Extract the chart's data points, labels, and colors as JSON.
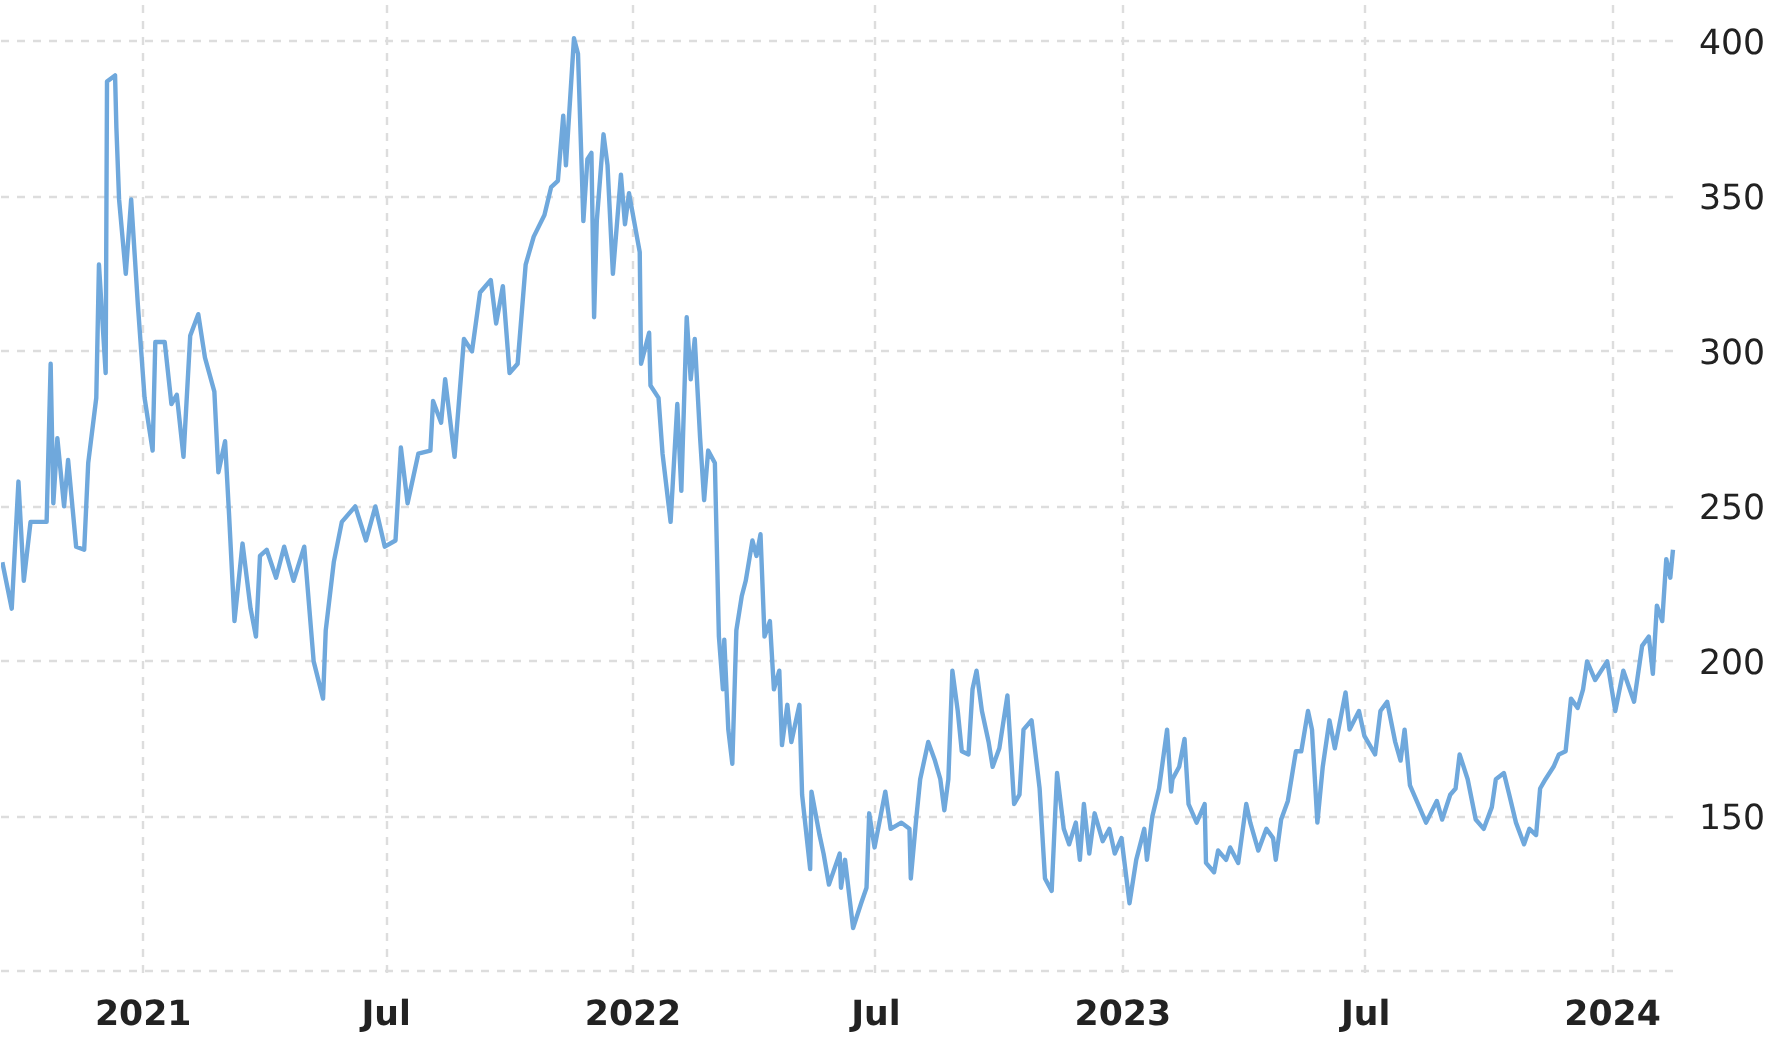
{
  "chart_data": {
    "type": "line",
    "color": "#6fa8dc",
    "grid": true,
    "line_style": "solid",
    "marker": "none",
    "xlim": [
      "2020-09-17",
      "2024-02-18"
    ],
    "xticks": [
      {
        "value": "2021-01-01",
        "label": "2021"
      },
      {
        "value": "2021-07-01",
        "label": "Jul"
      },
      {
        "value": "2022-01-01",
        "label": "2022"
      },
      {
        "value": "2022-07-01",
        "label": "Jul"
      },
      {
        "value": "2023-01-01",
        "label": "2023"
      },
      {
        "value": "2023-07-01",
        "label": "Jul"
      },
      {
        "value": "2024-01-01",
        "label": "2024"
      }
    ],
    "ylim": [
      99.5,
      413
    ],
    "yticks": [
      {
        "value": 100,
        "label": null
      },
      150,
      200,
      250,
      300,
      350,
      400
    ],
    "x": [
      "2020-09-18",
      "2020-09-25",
      "2020-09-30",
      "2020-10-04",
      "2020-10-09",
      "2020-10-15",
      "2020-10-21",
      "2020-10-24",
      "2020-10-26",
      "2020-10-29",
      "2020-11-03",
      "2020-11-06",
      "2020-11-12",
      "2020-11-18",
      "2020-11-21",
      "2020-11-27",
      "2020-11-29",
      "2020-12-04",
      "2020-12-05",
      "2020-12-11",
      "2020-12-12",
      "2020-12-14",
      "2020-12-19",
      "2020-12-23",
      "2020-12-28",
      "2021-01-02",
      "2021-01-08",
      "2021-01-10",
      "2021-01-17",
      "2021-01-22",
      "2021-01-26",
      "2021-01-31",
      "2021-02-05",
      "2021-02-11",
      "2021-02-16",
      "2021-02-23",
      "2021-02-26",
      "2021-03-03",
      "2021-03-06",
      "2021-03-10",
      "2021-03-16",
      "2021-03-22",
      "2021-03-26",
      "2021-03-29",
      "2021-04-03",
      "2021-04-10",
      "2021-04-16",
      "2021-04-23",
      "2021-05-01",
      "2021-05-08",
      "2021-05-15",
      "2021-05-17",
      "2021-05-23",
      "2021-05-29",
      "2021-06-08",
      "2021-06-16",
      "2021-06-23",
      "2021-06-30",
      "2021-07-08",
      "2021-07-12",
      "2021-07-17",
      "2021-07-25",
      "2021-08-03",
      "2021-08-05",
      "2021-08-11",
      "2021-08-14",
      "2021-08-21",
      "2021-08-28",
      "2021-09-03",
      "2021-09-09",
      "2021-09-17",
      "2021-09-21",
      "2021-09-26",
      "2021-10-01",
      "2021-10-07",
      "2021-10-13",
      "2021-10-19",
      "2021-10-27",
      "2021-11-01",
      "2021-11-06",
      "2021-11-10",
      "2021-11-12",
      "2021-11-18",
      "2021-11-21",
      "2021-11-25",
      "2021-11-28",
      "2021-12-01",
      "2021-12-03",
      "2021-12-05",
      "2021-12-10",
      "2021-12-13",
      "2021-12-17",
      "2021-12-23",
      "2021-12-26",
      "2021-12-29",
      "2022-01-06",
      "2022-01-07",
      "2022-01-13",
      "2022-01-14",
      "2022-01-20",
      "2022-01-23",
      "2022-01-29",
      "2022-02-03",
      "2022-02-06",
      "2022-02-10",
      "2022-02-13",
      "2022-02-16",
      "2022-02-20",
      "2022-02-23",
      "2022-02-26",
      "2022-03-03",
      "2022-03-06",
      "2022-03-09",
      "2022-03-10",
      "2022-03-13",
      "2022-03-16",
      "2022-03-19",
      "2022-03-23",
      "2022-03-26",
      "2022-03-31",
      "2022-04-03",
      "2022-04-06",
      "2022-04-09",
      "2022-04-13",
      "2022-04-16",
      "2022-04-20",
      "2022-04-22",
      "2022-04-26",
      "2022-04-29",
      "2022-05-05",
      "2022-05-07",
      "2022-05-13",
      "2022-05-14",
      "2022-05-20",
      "2022-05-23",
      "2022-05-27",
      "2022-06-04",
      "2022-06-05",
      "2022-06-08",
      "2022-06-14",
      "2022-06-20",
      "2022-06-24",
      "2022-06-26",
      "2022-06-30",
      "2022-07-08",
      "2022-07-12",
      "2022-07-20",
      "2022-07-26",
      "2022-07-27",
      "2022-07-31",
      "2022-08-03",
      "2022-08-09",
      "2022-08-14",
      "2022-08-18",
      "2022-08-21",
      "2022-08-24",
      "2022-08-27",
      "2022-08-31",
      "2022-09-03",
      "2022-09-08",
      "2022-09-11",
      "2022-09-14",
      "2022-09-18",
      "2022-09-23",
      "2022-09-26",
      "2022-10-01",
      "2022-10-07",
      "2022-10-12",
      "2022-10-16",
      "2022-10-19",
      "2022-10-25",
      "2022-10-31",
      "2022-11-04",
      "2022-11-09",
      "2022-11-13",
      "2022-11-18",
      "2022-11-22",
      "2022-11-27",
      "2022-11-30",
      "2022-12-03",
      "2022-12-07",
      "2022-12-11",
      "2022-12-17",
      "2022-12-22",
      "2022-12-26",
      "2022-12-31",
      "2023-01-06",
      "2023-01-11",
      "2023-01-17",
      "2023-01-19",
      "2023-01-23",
      "2023-01-28",
      "2023-02-03",
      "2023-02-06",
      "2023-02-07",
      "2023-02-12",
      "2023-02-16",
      "2023-02-19",
      "2023-02-25",
      "2023-03-03",
      "2023-03-04",
      "2023-03-10",
      "2023-03-13",
      "2023-03-19",
      "2023-03-22",
      "2023-03-28",
      "2023-04-03",
      "2023-04-06",
      "2023-04-12",
      "2023-04-18",
      "2023-04-23",
      "2023-04-25",
      "2023-04-29",
      "2023-05-04",
      "2023-05-10",
      "2023-05-14",
      "2023-05-19",
      "2023-05-22",
      "2023-05-26",
      "2023-05-30",
      "2023-06-04",
      "2023-06-08",
      "2023-06-16",
      "2023-06-19",
      "2023-06-26",
      "2023-06-30",
      "2023-07-08",
      "2023-07-12",
      "2023-07-17",
      "2023-07-23",
      "2023-07-27",
      "2023-07-30",
      "2023-08-03",
      "2023-08-08",
      "2023-08-15",
      "2023-08-23",
      "2023-08-27",
      "2023-09-02",
      "2023-09-06",
      "2023-09-09",
      "2023-09-15",
      "2023-09-21",
      "2023-09-27",
      "2023-10-03",
      "2023-10-06",
      "2023-10-12",
      "2023-10-16",
      "2023-10-21",
      "2023-10-27",
      "2023-10-31",
      "2023-11-05",
      "2023-11-08",
      "2023-11-12",
      "2023-11-18",
      "2023-11-22",
      "2023-11-27",
      "2023-12-01",
      "2023-12-06",
      "2023-12-10",
      "2023-12-13",
      "2023-12-19",
      "2023-12-28",
      "2024-01-03",
      "2024-01-09",
      "2024-01-17",
      "2024-01-23",
      "2024-01-28",
      "2024-01-31",
      "2024-02-03",
      "2024-02-07",
      "2024-02-10",
      "2024-02-13",
      "2024-02-15"
    ],
    "values": [
      232,
      217,
      258,
      226,
      245,
      245,
      245,
      296,
      251,
      272,
      250,
      265,
      237,
      236,
      264,
      285,
      328,
      293,
      387,
      389,
      372,
      349,
      325,
      349,
      315,
      285,
      268,
      303,
      303,
      283,
      286,
      266,
      305,
      312,
      298,
      287,
      261,
      271,
      247,
      213,
      238,
      217,
      208,
      234,
      236,
      227,
      237,
      226,
      237,
      200,
      188,
      210,
      232,
      245,
      250,
      239,
      250,
      237,
      239,
      269,
      251,
      267,
      268,
      284,
      277,
      291,
      266,
      304,
      300,
      319,
      323,
      309,
      321,
      293,
      296,
      328,
      337,
      344,
      353,
      355,
      376,
      360,
      401,
      396,
      342,
      362,
      364,
      311,
      342,
      370,
      360,
      325,
      357,
      341,
      351,
      332,
      296,
      306,
      289,
      285,
      267,
      245,
      283,
      255,
      311,
      291,
      304,
      272,
      252,
      268,
      264,
      208,
      191,
      207,
      178,
      167,
      210,
      221,
      226,
      239,
      234,
      241,
      208,
      213,
      191,
      197,
      173,
      186,
      174,
      186,
      157,
      133,
      158,
      144,
      138,
      128,
      138,
      127,
      136,
      114,
      122,
      127,
      151,
      140,
      158,
      146,
      148,
      146,
      130,
      149,
      162,
      174,
      168,
      162,
      152,
      162,
      197,
      184,
      171,
      170,
      191,
      197,
      184,
      174,
      166,
      172,
      189,
      154,
      157,
      178,
      181,
      159,
      130,
      126,
      164,
      146,
      141,
      148,
      136,
      154,
      138,
      151,
      142,
      146,
      138,
      143,
      122,
      136,
      146,
      136,
      150,
      159,
      178,
      158,
      162,
      166,
      175,
      154,
      148,
      154,
      135,
      132,
      139,
      136,
      140,
      135,
      154,
      148,
      139,
      146,
      143,
      136,
      149,
      155,
      171,
      171,
      184,
      178,
      148,
      166,
      181,
      172,
      190,
      178,
      184,
      176,
      170,
      184,
      187,
      174,
      168,
      178,
      160,
      155,
      148,
      155,
      149,
      157,
      159,
      170,
      162,
      149,
      146,
      153,
      162,
      164,
      157,
      148,
      141,
      146,
      144,
      159,
      162,
      166,
      170,
      171,
      188,
      185,
      191,
      200,
      194,
      200,
      184,
      197,
      187,
      205,
      208,
      196,
      218,
      213,
      233,
      227,
      236
    ]
  }
}
